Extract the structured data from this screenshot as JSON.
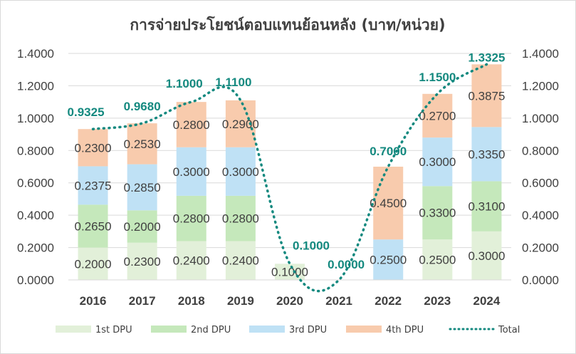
{
  "chart_data": {
    "type": "bar",
    "stacked": true,
    "title": "การจ่ายประโยชน์ตอบแทนย้อนหลัง (บาท/หน่วย)",
    "categories": [
      "2016",
      "2017",
      "2018",
      "2019",
      "2020",
      "2021",
      "2022",
      "2023",
      "2024"
    ],
    "series": [
      {
        "name": "1st DPU",
        "color": "#e2f0d9",
        "values": [
          0.2,
          0.23,
          0.24,
          0.24,
          0.1,
          0.0,
          0.0,
          0.25,
          0.3
        ],
        "labels": [
          "0.2000",
          "0.2300",
          "0.2400",
          "0.2400",
          "0.1000",
          "",
          "",
          "0.2500",
          "0.3000"
        ]
      },
      {
        "name": "2nd DPU",
        "color": "#c5e8bb",
        "values": [
          0.265,
          0.2,
          0.28,
          0.28,
          0.0,
          0.0,
          0.0,
          0.33,
          0.31
        ],
        "labels": [
          "0.2650",
          "0.2000",
          "0.2800",
          "0.2800",
          "",
          "",
          "",
          "0.3300",
          "0.3100"
        ]
      },
      {
        "name": "3rd DPU",
        "color": "#bfe1f5",
        "values": [
          0.2375,
          0.285,
          0.3,
          0.3,
          0.0,
          0.0,
          0.25,
          0.3,
          0.335
        ],
        "labels": [
          "0.2375",
          "0.2850",
          "0.3000",
          "0.3000",
          "",
          "",
          "0.2500",
          "0.3000",
          "0.3350"
        ]
      },
      {
        "name": "4th DPU",
        "color": "#f8cbad",
        "values": [
          0.23,
          0.253,
          0.28,
          0.29,
          0.0,
          0.0,
          0.45,
          0.27,
          0.3875
        ],
        "labels": [
          "0.2300",
          "0.2530",
          "0.2800",
          "0.2900",
          "",
          "",
          "0.4500",
          "0.2700",
          "0.3875"
        ]
      }
    ],
    "total": {
      "name": "Total",
      "color": "#14897f",
      "values": [
        0.9325,
        0.968,
        1.1,
        1.11,
        0.1,
        0.0,
        0.7,
        1.15,
        1.3325
      ],
      "labels": [
        "0.9325",
        "0.9680",
        "1.1000",
        "1.1100",
        "0.1000",
        "0.0000",
        "0.7000",
        "1.1500",
        "1.3325"
      ]
    },
    "ylim": [
      0,
      1.4
    ],
    "yticks": [
      "0.0000",
      "0.2000",
      "0.4000",
      "0.6000",
      "0.8000",
      "1.0000",
      "1.2000",
      "1.4000"
    ],
    "ytick_values": [
      0,
      0.2,
      0.4,
      0.6,
      0.8,
      1.0,
      1.2,
      1.4
    ],
    "secondary_axis": true,
    "grid": true,
    "legend": "bottom"
  }
}
